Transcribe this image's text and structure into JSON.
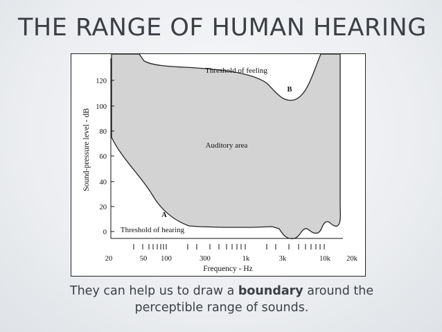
{
  "slide": {
    "title": "THE RANGE OF HUMAN HEARING",
    "caption": {
      "before": "They can help us to draw a ",
      "bold": "boundary",
      "after": " around the perceptible range of sounds."
    }
  },
  "figure": {
    "ylabel": "Sound-pressure level - dB",
    "xlabel": "Frequency - Hz",
    "y_ticks": [
      "0",
      "20",
      "40",
      "60",
      "80",
      "100",
      "120"
    ],
    "x_ticks": [
      "20",
      "50",
      "100",
      "300",
      "1k",
      "3k",
      "10k",
      "20k"
    ],
    "annotations": {
      "threshold_feeling": "Threshold of feeling",
      "threshold_hearing": "Threshold of hearing",
      "area": "Auditory area",
      "point_a": "A",
      "point_b": "B"
    },
    "fill_color": "#d3d3d3"
  }
}
